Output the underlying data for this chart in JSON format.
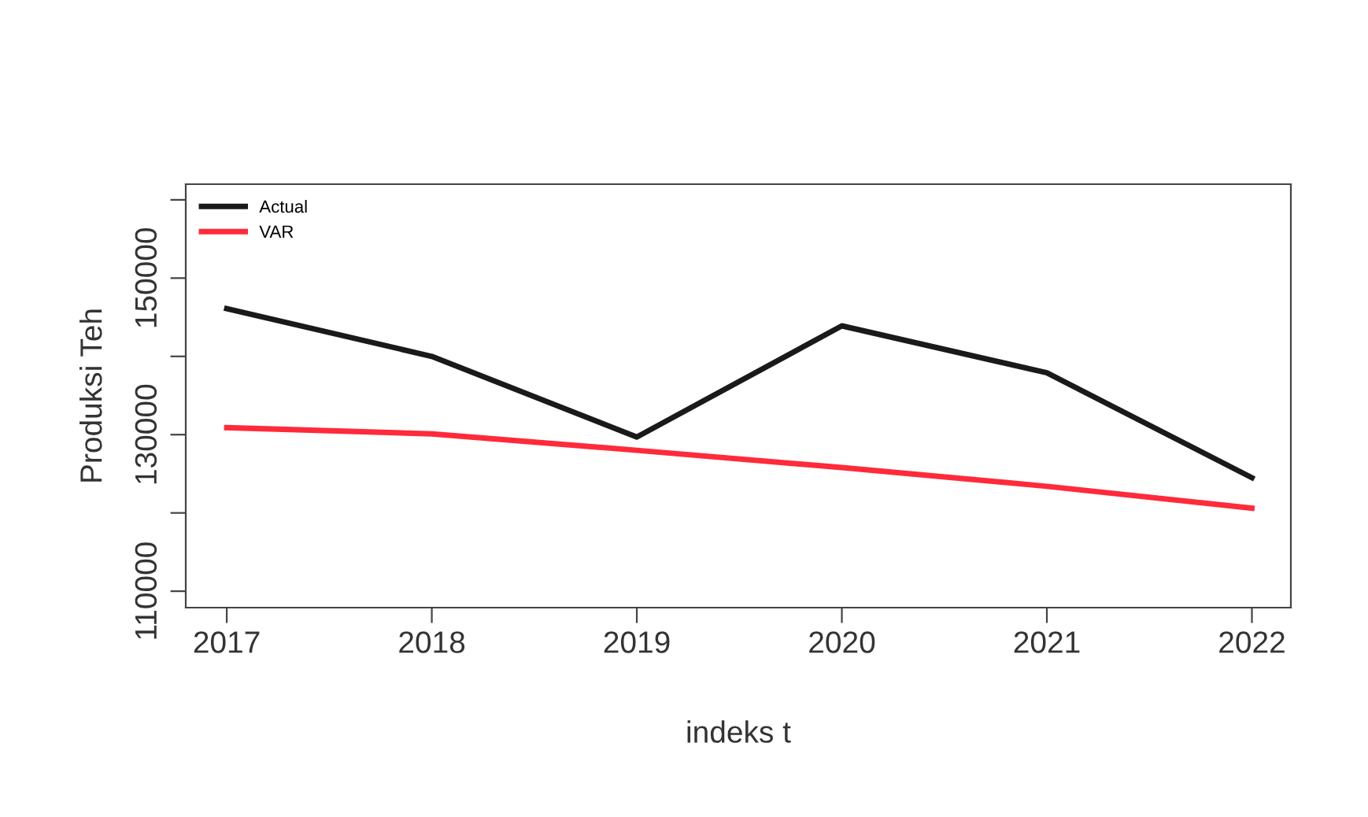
{
  "chart_data": {
    "type": "line",
    "xlabel": "indeks t",
    "ylabel": "Produksi Teh",
    "x": [
      2017,
      2018,
      2019,
      2020,
      2021,
      2022
    ],
    "series": [
      {
        "name": "Actual",
        "color": "#1a1a1a",
        "values": [
          146100,
          140000,
          129700,
          143900,
          137900,
          124500
        ]
      },
      {
        "name": "VAR",
        "color": "#ff2a3a",
        "values": [
          130900,
          130100,
          128000,
          125800,
          123400,
          120600
        ]
      }
    ],
    "xlim": [
      2016.8,
      2022.19
    ],
    "ylim": [
      107900,
      162000
    ],
    "xticks": [
      2017,
      2018,
      2019,
      2020,
      2021,
      2022
    ],
    "yticks": [
      110000,
      {
        "value": 120000,
        "label": null
      },
      130000,
      {
        "value": 140000,
        "label": null
      },
      150000,
      {
        "value": 160000,
        "label": null
      }
    ],
    "legend": "top left",
    "grid": false,
    "marker": "none",
    "line_style": "solid"
  }
}
